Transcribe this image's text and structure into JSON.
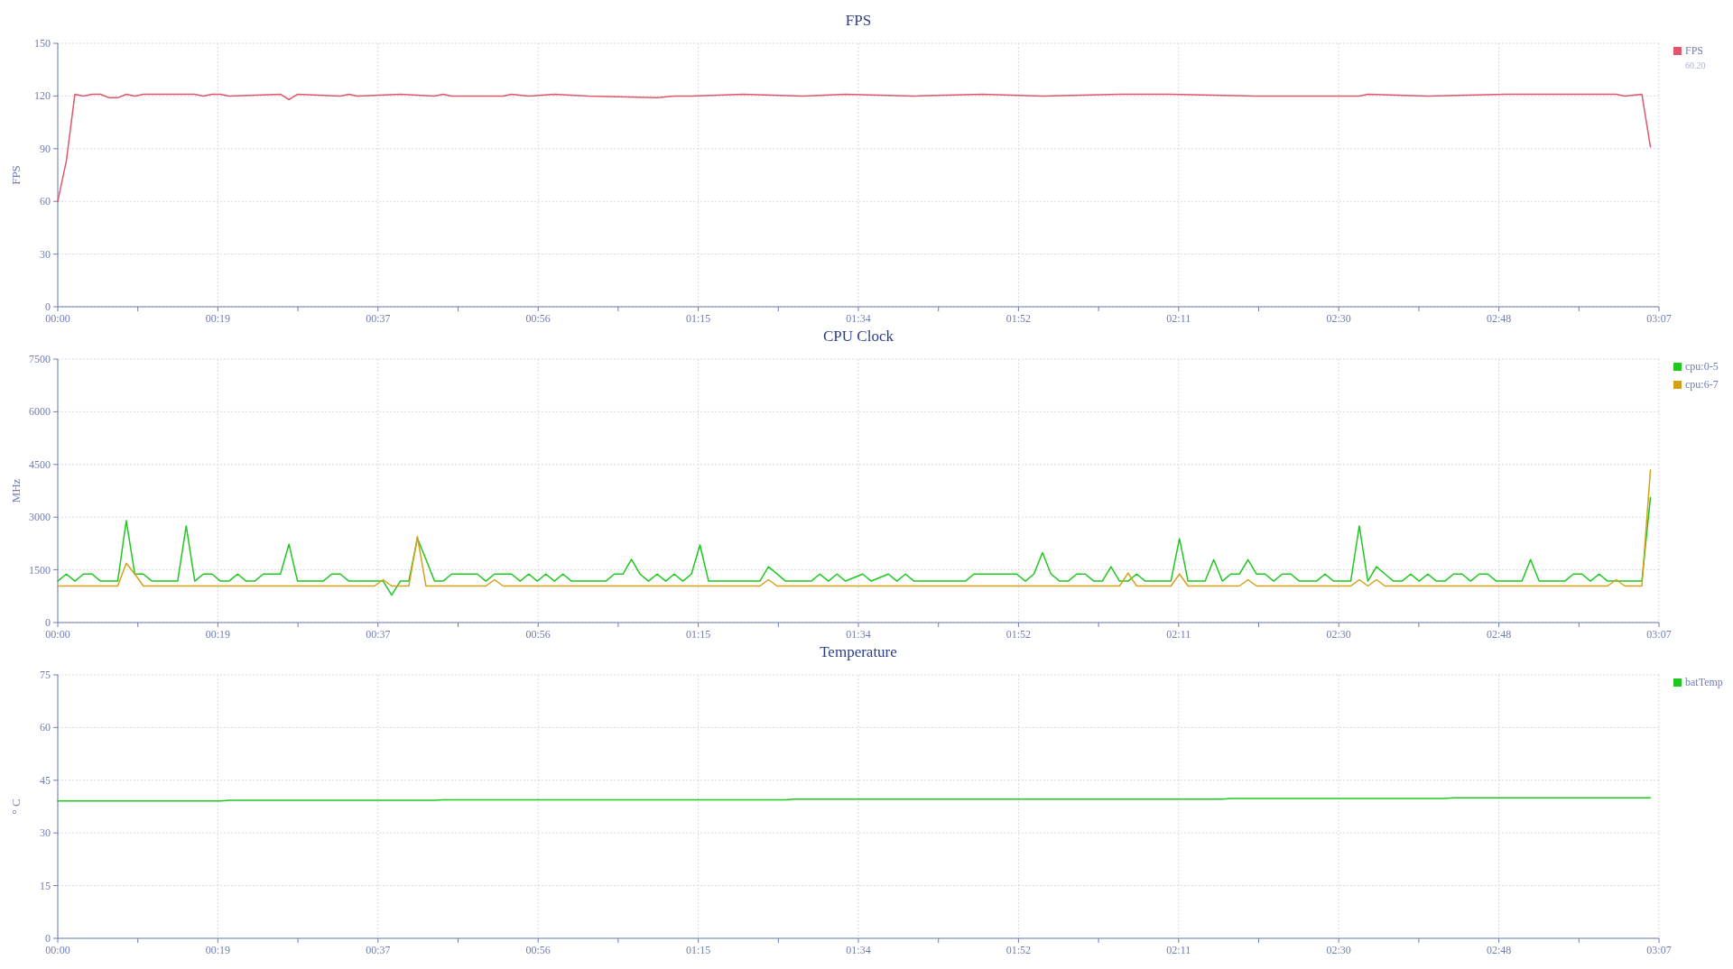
{
  "chart_data": [
    {
      "type": "line",
      "title": "FPS",
      "ylabel": "FPS",
      "xlim": [
        0,
        187
      ],
      "ylim": [
        0,
        150
      ],
      "yticks": [
        0,
        30,
        60,
        90,
        120,
        150
      ],
      "xticks": [
        {
          "value": 0,
          "label": "00:00"
        },
        {
          "value": 9.35,
          "label": null
        },
        {
          "value": 18.7,
          "label": "00:19"
        },
        {
          "value": 28.05,
          "label": null
        },
        {
          "value": 37.4,
          "label": "00:37"
        },
        {
          "value": 46.75,
          "label": null
        },
        {
          "value": 56.1,
          "label": "00:56"
        },
        {
          "value": 65.45,
          "label": null
        },
        {
          "value": 74.8,
          "label": "01:15"
        },
        {
          "value": 84.15,
          "label": null
        },
        {
          "value": 93.5,
          "label": "01:34"
        },
        {
          "value": 102.85,
          "label": null
        },
        {
          "value": 112.2,
          "label": "01:52"
        },
        {
          "value": 121.55,
          "label": null
        },
        {
          "value": 130.9,
          "label": "02:11"
        },
        {
          "value": 140.25,
          "label": null
        },
        {
          "value": 149.6,
          "label": "02:30"
        },
        {
          "value": 158.95,
          "label": null
        },
        {
          "value": 168.3,
          "label": "02:48"
        },
        {
          "value": 177.65,
          "label": null
        },
        {
          "value": 187,
          "label": "03:07"
        }
      ],
      "grid": true,
      "legend": "right",
      "annotations": [
        "60.20"
      ],
      "series": [
        {
          "name": "FPS",
          "color": "#e0566c",
          "x": [
            0,
            1,
            2,
            3,
            4,
            5,
            6,
            7,
            8,
            9,
            10,
            16,
            17,
            18,
            19,
            20,
            26,
            27,
            28,
            33,
            34,
            35,
            40,
            44,
            45,
            46,
            52,
            53,
            55,
            58,
            62,
            70,
            72,
            74,
            80,
            87,
            92,
            100,
            108,
            115,
            124,
            130,
            140,
            152,
            153,
            160,
            169,
            182,
            183,
            185,
            186
          ],
          "values": [
            60,
            83,
            121,
            120,
            121,
            121,
            119,
            119,
            121,
            120,
            121,
            121,
            120,
            121,
            121,
            120,
            121,
            118,
            121,
            120,
            121,
            120,
            121,
            120,
            121,
            120,
            120,
            121,
            120,
            121,
            120,
            119,
            120,
            120,
            121,
            120,
            121,
            120,
            121,
            120,
            121,
            121,
            120,
            120,
            121,
            120,
            121,
            121,
            120,
            121,
            91
          ]
        }
      ]
    },
    {
      "type": "line",
      "title": "CPU Clock",
      "ylabel": "MHz",
      "xlim": [
        0,
        187
      ],
      "ylim": [
        0,
        7500
      ],
      "yticks": [
        0,
        1500,
        3000,
        4500,
        6000,
        7500
      ],
      "xticks": [
        {
          "value": 0,
          "label": "00:00"
        },
        {
          "value": 9.35,
          "label": null
        },
        {
          "value": 18.7,
          "label": "00:19"
        },
        {
          "value": 28.05,
          "label": null
        },
        {
          "value": 37.4,
          "label": "00:37"
        },
        {
          "value": 46.75,
          "label": null
        },
        {
          "value": 56.1,
          "label": "00:56"
        },
        {
          "value": 65.45,
          "label": null
        },
        {
          "value": 74.8,
          "label": "01:15"
        },
        {
          "value": 84.15,
          "label": null
        },
        {
          "value": 93.5,
          "label": "01:34"
        },
        {
          "value": 102.85,
          "label": null
        },
        {
          "value": 112.2,
          "label": "01:52"
        },
        {
          "value": 121.55,
          "label": null
        },
        {
          "value": 130.9,
          "label": "02:11"
        },
        {
          "value": 140.25,
          "label": null
        },
        {
          "value": 149.6,
          "label": "02:30"
        },
        {
          "value": 158.95,
          "label": null
        },
        {
          "value": 168.3,
          "label": "02:48"
        },
        {
          "value": 177.65,
          "label": null
        },
        {
          "value": 187,
          "label": "03:07"
        }
      ],
      "grid": true,
      "legend": "right",
      "series": [
        {
          "name": "cpu:0-5",
          "color": "#1ec81e",
          "x": [
            0,
            1,
            2,
            3,
            4,
            5,
            7,
            8,
            9,
            10,
            11,
            14,
            15,
            16,
            17,
            18,
            19,
            20,
            21,
            22,
            23,
            24,
            26,
            27,
            28,
            31,
            32,
            33,
            34,
            38,
            39,
            40,
            41,
            42,
            43,
            44,
            45,
            46,
            49,
            50,
            51,
            53,
            54,
            55,
            56,
            57,
            58,
            59,
            60,
            64,
            65,
            66,
            67,
            68,
            69,
            70,
            71,
            72,
            73,
            74,
            75,
            76,
            82,
            83,
            85,
            88,
            89,
            90,
            91,
            92,
            94,
            95,
            97,
            98,
            99,
            100,
            106,
            107,
            108,
            112,
            113,
            114,
            115,
            116,
            117,
            118,
            119,
            120,
            121,
            122,
            123,
            124,
            125,
            126,
            127,
            130,
            131,
            132,
            134,
            135,
            136,
            137,
            138,
            139,
            140,
            141,
            142,
            143,
            144,
            145,
            147,
            148,
            149,
            151,
            152,
            153,
            154,
            155,
            156,
            157,
            158,
            159,
            160,
            161,
            162,
            163,
            164,
            165,
            166,
            167,
            168,
            171,
            172,
            173,
            176,
            177,
            178,
            179,
            180,
            181,
            185,
            186
          ],
          "values": [
            1180,
            1380,
            1180,
            1380,
            1380,
            1180,
            1180,
            2900,
            1380,
            1380,
            1180,
            1180,
            2750,
            1180,
            1380,
            1380,
            1180,
            1180,
            1380,
            1180,
            1180,
            1380,
            1380,
            2230,
            1180,
            1180,
            1380,
            1380,
            1180,
            1180,
            780,
            1180,
            1180,
            2400,
            1800,
            1180,
            1180,
            1380,
            1380,
            1180,
            1380,
            1380,
            1180,
            1380,
            1180,
            1380,
            1180,
            1380,
            1180,
            1180,
            1380,
            1380,
            1800,
            1380,
            1180,
            1380,
            1180,
            1380,
            1180,
            1380,
            2210,
            1180,
            1180,
            1590,
            1180,
            1180,
            1380,
            1180,
            1380,
            1180,
            1380,
            1180,
            1380,
            1180,
            1380,
            1180,
            1180,
            1380,
            1380,
            1380,
            1180,
            1380,
            1990,
            1380,
            1180,
            1180,
            1380,
            1380,
            1180,
            1180,
            1590,
            1180,
            1180,
            1380,
            1180,
            1180,
            2390,
            1180,
            1180,
            1790,
            1180,
            1380,
            1380,
            1790,
            1380,
            1380,
            1180,
            1380,
            1380,
            1180,
            1180,
            1380,
            1180,
            1180,
            2750,
            1180,
            1590,
            1380,
            1180,
            1180,
            1380,
            1180,
            1380,
            1180,
            1180,
            1380,
            1380,
            1180,
            1380,
            1380,
            1180,
            1180,
            1790,
            1180,
            1180,
            1380,
            1380,
            1180,
            1380,
            1180,
            1180,
            3560
          ]
        },
        {
          "name": "cpu:6-7",
          "color": "#d4a017",
          "x": [
            0,
            7,
            8,
            9,
            10,
            37,
            38,
            39,
            41,
            42,
            43,
            50,
            51,
            52,
            82,
            83,
            84,
            124,
            125,
            126,
            130,
            131,
            132,
            138,
            139,
            140,
            151,
            152,
            153,
            154,
            155,
            181,
            182,
            183,
            185,
            186
          ],
          "values": [
            1040,
            1040,
            1690,
            1380,
            1040,
            1040,
            1220,
            1040,
            1040,
            2450,
            1040,
            1040,
            1220,
            1040,
            1040,
            1220,
            1040,
            1040,
            1410,
            1040,
            1040,
            1380,
            1040,
            1040,
            1220,
            1040,
            1040,
            1220,
            1040,
            1220,
            1040,
            1040,
            1220,
            1040,
            1040,
            4340
          ]
        }
      ]
    },
    {
      "type": "line",
      "title": "Temperature",
      "ylabel": "° C",
      "xlim": [
        0,
        187
      ],
      "ylim": [
        0,
        75
      ],
      "yticks": [
        0,
        15,
        30,
        45,
        60,
        75
      ],
      "xticks": [
        {
          "value": 0,
          "label": "00:00"
        },
        {
          "value": 9.35,
          "label": null
        },
        {
          "value": 18.7,
          "label": "00:19"
        },
        {
          "value": 28.05,
          "label": null
        },
        {
          "value": 37.4,
          "label": "00:37"
        },
        {
          "value": 46.75,
          "label": null
        },
        {
          "value": 56.1,
          "label": "00:56"
        },
        {
          "value": 65.45,
          "label": null
        },
        {
          "value": 74.8,
          "label": "01:15"
        },
        {
          "value": 84.15,
          "label": null
        },
        {
          "value": 93.5,
          "label": "01:34"
        },
        {
          "value": 102.85,
          "label": null
        },
        {
          "value": 112.2,
          "label": "01:52"
        },
        {
          "value": 121.55,
          "label": null
        },
        {
          "value": 130.9,
          "label": "02:11"
        },
        {
          "value": 140.25,
          "label": null
        },
        {
          "value": 149.6,
          "label": "02:30"
        },
        {
          "value": 158.95,
          "label": null
        },
        {
          "value": 168.3,
          "label": "02:48"
        },
        {
          "value": 177.65,
          "label": null
        },
        {
          "value": 187,
          "label": "03:07"
        }
      ],
      "grid": true,
      "legend": "right",
      "series": [
        {
          "name": "batTemp",
          "color": "#1ec81e",
          "x": [
            0,
            19,
            20,
            44,
            45,
            85,
            86,
            136,
            137,
            162,
            163,
            186
          ],
          "values": [
            39.1,
            39.1,
            39.3,
            39.3,
            39.4,
            39.4,
            39.6,
            39.6,
            39.8,
            39.8,
            40.0,
            40.0
          ]
        }
      ]
    }
  ]
}
